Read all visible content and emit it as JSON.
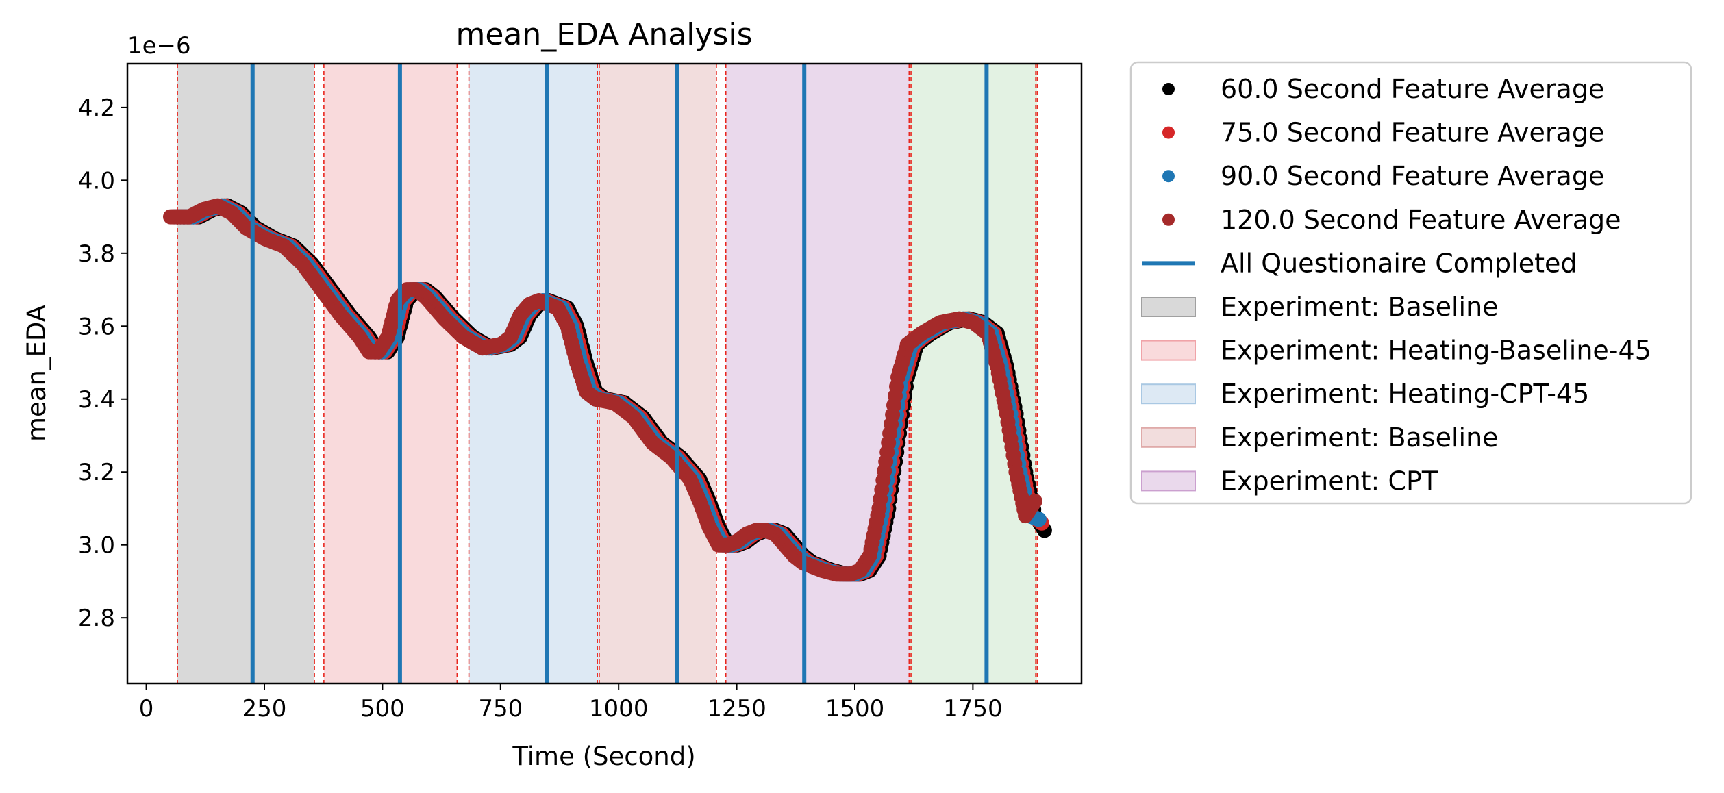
{
  "chart_data": {
    "type": "scatter",
    "title": "mean_EDA Analysis",
    "xlabel": "Time (Second)",
    "ylabel": "mean_EDA",
    "y_offset_label": "1e−6",
    "xlim": [
      -40,
      1980
    ],
    "ylim": [
      2.62,
      4.32
    ],
    "x_ticks": [
      0,
      250,
      500,
      750,
      1000,
      1250,
      1500,
      1750
    ],
    "y_ticks": [
      2.8,
      3.0,
      3.2,
      3.4,
      3.6,
      3.8,
      4.0,
      4.2
    ],
    "y_tick_labels": [
      "2.8",
      "3.0",
      "3.2",
      "3.4",
      "3.6",
      "3.8",
      "4.0",
      "4.2"
    ],
    "grid": false,
    "legend_position": "outside-right",
    "series": [
      {
        "name": "60.0 Second Feature Average",
        "color": "#000000",
        "shift": 8,
        "x": [
          60,
          100,
          130,
          160,
          190,
          220,
          260,
          300,
          340,
          380,
          420,
          460,
          480,
          500,
          520,
          540,
          560,
          580,
          600,
          640,
          680,
          720,
          760,
          780,
          800,
          820,
          840,
          860,
          880,
          900,
          920,
          940,
          960,
          1000,
          1040,
          1080,
          1120,
          1160,
          1180,
          1200,
          1220,
          1240,
          1260,
          1280,
          1300,
          1320,
          1340,
          1360,
          1380,
          1400,
          1440,
          1470,
          1500,
          1520,
          1540,
          1560,
          1580,
          1600,
          1620,
          1650,
          1690,
          1730,
          1760,
          1790,
          1810,
          1830,
          1850,
          1870,
          1890
        ],
        "y": [
          3.9,
          3.9,
          3.92,
          3.93,
          3.91,
          3.87,
          3.84,
          3.82,
          3.77,
          3.7,
          3.63,
          3.57,
          3.53,
          3.53,
          3.57,
          3.67,
          3.7,
          3.7,
          3.68,
          3.62,
          3.57,
          3.54,
          3.55,
          3.57,
          3.63,
          3.66,
          3.67,
          3.66,
          3.65,
          3.6,
          3.5,
          3.42,
          3.4,
          3.39,
          3.35,
          3.28,
          3.24,
          3.18,
          3.12,
          3.05,
          3.0,
          3.0,
          3.01,
          3.03,
          3.04,
          3.04,
          3.03,
          3.0,
          2.97,
          2.95,
          2.93,
          2.92,
          2.92,
          2.93,
          2.97,
          3.1,
          3.28,
          3.46,
          3.55,
          3.58,
          3.61,
          3.62,
          3.61,
          3.58,
          3.49,
          3.36,
          3.2,
          3.08,
          3.04
        ]
      },
      {
        "name": "75.0 Second Feature Average",
        "color": "#d62728",
        "shift": 4,
        "x": [
          60,
          100,
          130,
          160,
          190,
          220,
          260,
          300,
          340,
          380,
          420,
          460,
          480,
          500,
          520,
          540,
          560,
          580,
          600,
          640,
          680,
          720,
          760,
          780,
          800,
          820,
          840,
          860,
          880,
          900,
          920,
          940,
          960,
          1000,
          1040,
          1080,
          1120,
          1160,
          1180,
          1200,
          1220,
          1240,
          1260,
          1280,
          1300,
          1320,
          1340,
          1360,
          1380,
          1400,
          1440,
          1470,
          1500,
          1520,
          1540,
          1560,
          1580,
          1600,
          1620,
          1650,
          1690,
          1730,
          1760,
          1790,
          1810,
          1830,
          1850,
          1870,
          1890
        ],
        "y": [
          3.9,
          3.9,
          3.92,
          3.93,
          3.91,
          3.87,
          3.84,
          3.82,
          3.77,
          3.7,
          3.63,
          3.57,
          3.53,
          3.53,
          3.57,
          3.67,
          3.7,
          3.7,
          3.68,
          3.62,
          3.57,
          3.54,
          3.55,
          3.57,
          3.63,
          3.66,
          3.67,
          3.66,
          3.65,
          3.6,
          3.5,
          3.42,
          3.4,
          3.39,
          3.35,
          3.28,
          3.24,
          3.18,
          3.12,
          3.05,
          3.0,
          3.0,
          3.01,
          3.03,
          3.04,
          3.04,
          3.03,
          3.0,
          2.97,
          2.95,
          2.93,
          2.92,
          2.92,
          2.93,
          2.97,
          3.1,
          3.28,
          3.46,
          3.55,
          3.58,
          3.61,
          3.62,
          3.61,
          3.58,
          3.49,
          3.36,
          3.2,
          3.08,
          3.06
        ]
      },
      {
        "name": "90.0 Second Feature Average",
        "color": "#1f77b4",
        "shift": 0,
        "x": [
          60,
          100,
          130,
          160,
          190,
          220,
          260,
          300,
          340,
          380,
          420,
          460,
          480,
          500,
          520,
          540,
          560,
          580,
          600,
          640,
          680,
          720,
          760,
          780,
          800,
          820,
          840,
          860,
          880,
          900,
          920,
          940,
          960,
          1000,
          1040,
          1080,
          1120,
          1160,
          1180,
          1200,
          1220,
          1240,
          1260,
          1280,
          1300,
          1320,
          1340,
          1360,
          1380,
          1400,
          1440,
          1470,
          1500,
          1520,
          1540,
          1560,
          1580,
          1600,
          1620,
          1650,
          1690,
          1730,
          1760,
          1790,
          1810,
          1830,
          1850,
          1870,
          1890
        ],
        "y": [
          3.9,
          3.9,
          3.92,
          3.93,
          3.91,
          3.87,
          3.84,
          3.82,
          3.77,
          3.7,
          3.63,
          3.57,
          3.53,
          3.53,
          3.57,
          3.67,
          3.7,
          3.7,
          3.68,
          3.62,
          3.57,
          3.54,
          3.55,
          3.57,
          3.63,
          3.66,
          3.67,
          3.66,
          3.65,
          3.6,
          3.5,
          3.42,
          3.4,
          3.39,
          3.35,
          3.28,
          3.24,
          3.18,
          3.12,
          3.05,
          3.0,
          3.0,
          3.01,
          3.03,
          3.04,
          3.04,
          3.03,
          3.0,
          2.97,
          2.95,
          2.93,
          2.92,
          2.92,
          2.93,
          2.97,
          3.1,
          3.28,
          3.46,
          3.55,
          3.58,
          3.61,
          3.62,
          3.61,
          3.58,
          3.49,
          3.36,
          3.2,
          3.08,
          3.07
        ]
      },
      {
        "name": "120.0 Second Feature Average",
        "color": "#a52a2a",
        "shift": -6,
        "x": [
          60,
          100,
          130,
          160,
          190,
          220,
          260,
          300,
          340,
          380,
          420,
          460,
          480,
          500,
          520,
          540,
          560,
          580,
          600,
          640,
          680,
          720,
          760,
          780,
          800,
          820,
          840,
          860,
          880,
          900,
          920,
          940,
          960,
          1000,
          1040,
          1080,
          1120,
          1160,
          1180,
          1200,
          1220,
          1240,
          1260,
          1280,
          1300,
          1320,
          1340,
          1360,
          1380,
          1400,
          1440,
          1470,
          1500,
          1520,
          1540,
          1560,
          1580,
          1600,
          1620,
          1650,
          1690,
          1730,
          1760,
          1790,
          1810,
          1830,
          1850,
          1870,
          1890
        ],
        "y": [
          3.9,
          3.9,
          3.92,
          3.93,
          3.91,
          3.87,
          3.84,
          3.82,
          3.77,
          3.7,
          3.63,
          3.57,
          3.53,
          3.53,
          3.57,
          3.67,
          3.7,
          3.7,
          3.68,
          3.62,
          3.57,
          3.54,
          3.55,
          3.57,
          3.63,
          3.66,
          3.67,
          3.66,
          3.65,
          3.6,
          3.5,
          3.42,
          3.4,
          3.39,
          3.35,
          3.28,
          3.24,
          3.18,
          3.12,
          3.05,
          3.0,
          3.0,
          3.01,
          3.03,
          3.04,
          3.04,
          3.03,
          3.0,
          2.97,
          2.95,
          2.93,
          2.92,
          2.92,
          2.93,
          2.97,
          3.1,
          3.28,
          3.46,
          3.55,
          3.58,
          3.61,
          3.62,
          3.61,
          3.58,
          3.49,
          3.36,
          3.2,
          3.08,
          3.12
        ]
      }
    ],
    "questionnaire_lines": {
      "name": "All Questionaire Completed",
      "color": "#1f77b4",
      "x": [
        225,
        537,
        848,
        1123,
        1393,
        1779
      ]
    },
    "regions": [
      {
        "label": "Experiment: Baseline",
        "color": "#a0a0a0",
        "x0": 66,
        "x1": 356
      },
      {
        "label": "Experiment: Heating-Baseline-45",
        "color": "#f0a3a8",
        "x0": 376,
        "x1": 658
      },
      {
        "label": "Experiment: Heating-CPT-45",
        "color": "#a9c8e3",
        "x0": 683,
        "x1": 959
      },
      {
        "label": "Experiment: Baseline",
        "color": "#dfaaa9",
        "x0": 959,
        "x1": 1207
      },
      {
        "label": "Experiment: CPT",
        "color": "#cba0cf",
        "x0": 1227,
        "x1": 1617
      },
      {
        "label": "",
        "color": "#b9deb9",
        "x0": 1617,
        "x1": 1886
      }
    ],
    "boundary_lines": [
      66,
      356,
      376,
      658,
      683,
      955,
      959,
      1207,
      1227,
      1615,
      1619,
      1883,
      1886
    ]
  }
}
